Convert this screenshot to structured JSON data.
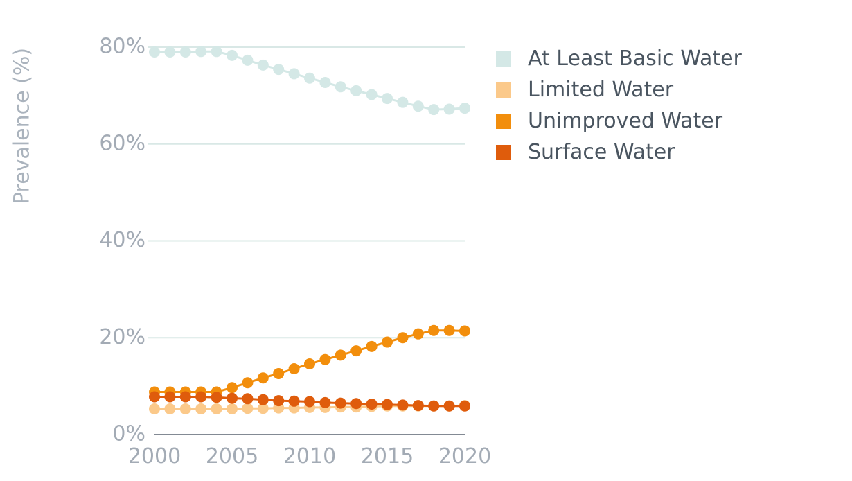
{
  "chart_data": {
    "type": "line",
    "ylabel": "Prevalence (%)",
    "xlabel": "",
    "x": [
      2000,
      2001,
      2002,
      2003,
      2004,
      2005,
      2006,
      2007,
      2008,
      2009,
      2010,
      2011,
      2012,
      2013,
      2014,
      2015,
      2016,
      2017,
      2018,
      2019,
      2020
    ],
    "xlim": [
      2000,
      2020
    ],
    "xticks": [
      "2000",
      "2005",
      "2010",
      "2015",
      "2020"
    ],
    "ylim": [
      0,
      80
    ],
    "yticks": [
      "0%",
      "20%",
      "40%",
      "60%",
      "80%"
    ],
    "grid": "horizontal",
    "legend_position": "top-right",
    "series": [
      {
        "name": "At Least Basic Water",
        "color": "#d4e8e6",
        "values": [
          79.0,
          79.0,
          79.0,
          79.1,
          79.1,
          78.3,
          77.3,
          76.3,
          75.4,
          74.5,
          73.6,
          72.7,
          71.8,
          71.0,
          70.2,
          69.4,
          68.6,
          67.8,
          67.1,
          67.2,
          67.4
        ]
      },
      {
        "name": "Limited Water",
        "color": "#fbc98a",
        "values": [
          5.3,
          5.3,
          5.3,
          5.3,
          5.3,
          5.3,
          5.4,
          5.4,
          5.5,
          5.5,
          5.6,
          5.6,
          5.7,
          5.7,
          5.8,
          5.9,
          5.9,
          5.9,
          5.9,
          5.9,
          6.0
        ]
      },
      {
        "name": "Unimproved Water",
        "color": "#f28e0c",
        "values": [
          8.8,
          8.8,
          8.8,
          8.8,
          8.8,
          9.7,
          10.7,
          11.7,
          12.6,
          13.6,
          14.6,
          15.5,
          16.4,
          17.3,
          18.2,
          19.1,
          20.0,
          20.8,
          21.5,
          21.5,
          21.4
        ]
      },
      {
        "name": "Surface Water",
        "color": "#df5c0c",
        "values": [
          7.8,
          7.8,
          7.8,
          7.8,
          7.7,
          7.5,
          7.4,
          7.2,
          7.0,
          6.9,
          6.8,
          6.6,
          6.5,
          6.4,
          6.3,
          6.2,
          6.1,
          6.0,
          5.9,
          5.9,
          5.9
        ]
      }
    ]
  }
}
